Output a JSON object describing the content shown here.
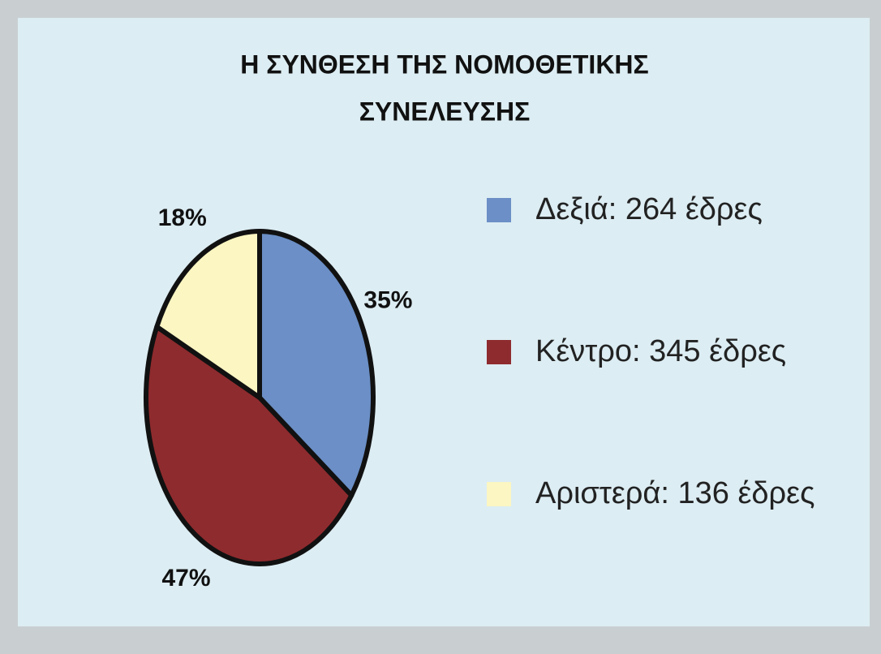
{
  "chart_data": {
    "type": "pie",
    "title": [
      "Η ΣΥΝΘΕΣΗ ΤΗΣ ΝΟΜΟΘΕΤΙΚΗΣ",
      "ΣΥΝΕΛΕΥΣΗΣ"
    ],
    "categories": [
      "Δεξιά: 264 έδρες",
      "Κέντρο: 345 έδρες",
      "Αριστερά: 136 έδρες"
    ],
    "values": [
      35,
      47,
      18
    ],
    "value_labels": [
      "35%",
      "47%",
      "18%"
    ],
    "colors": [
      "#6b8fc6",
      "#8e2b2e",
      "#fbf6c2"
    ],
    "legend": "right"
  }
}
